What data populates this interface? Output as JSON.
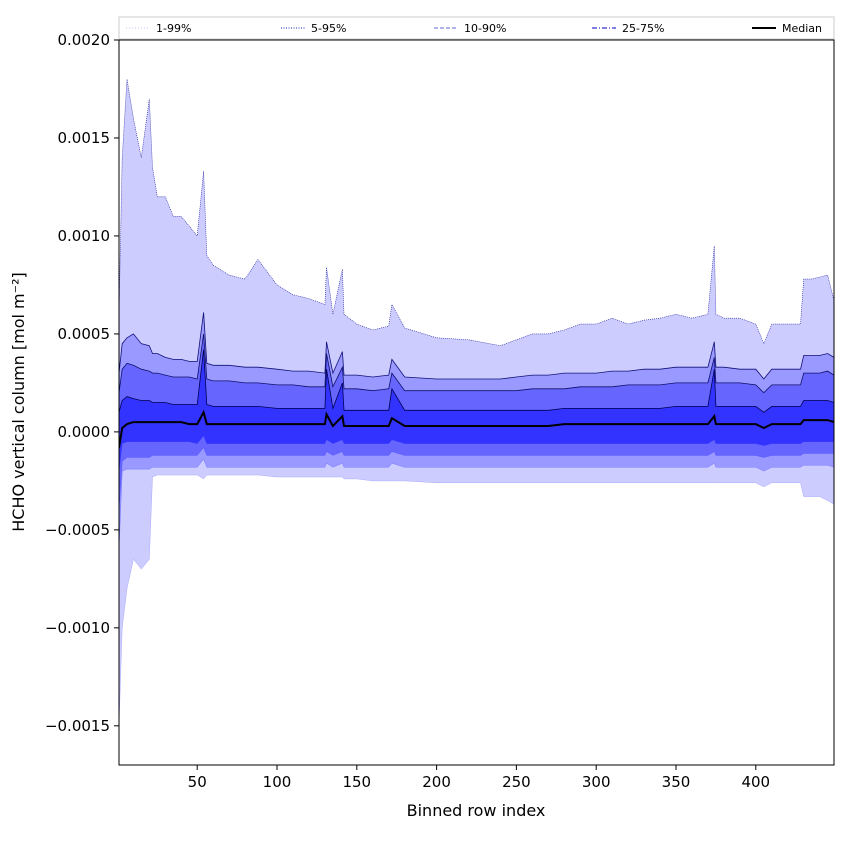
{
  "chart_data": {
    "type": "area",
    "xlabel": "Binned row index",
    "ylabel": "HCHO vertical column [mol m⁻²]",
    "xlim": [
      1,
      449
    ],
    "ylim": [
      -0.0017,
      0.002
    ],
    "xticks": [
      50,
      100,
      150,
      200,
      250,
      300,
      350,
      400
    ],
    "yticks": [
      -0.0015,
      -0.001,
      -0.0005,
      0.0,
      0.0005,
      0.001,
      0.0015,
      0.002
    ],
    "ytick_labels": [
      "−0.0015",
      "−0.0010",
      "−0.0005",
      "0.0000",
      "0.0005",
      "0.0010",
      "0.0015",
      "0.0020"
    ],
    "xtick_labels": [
      "50",
      "100",
      "150",
      "200",
      "250",
      "300",
      "350",
      "400"
    ],
    "legend_position": "top, above plot, spanning full width",
    "legend": [
      {
        "label": "1-99%",
        "color": "#b3b3e6",
        "style": "dotted-thin"
      },
      {
        "label": "5-95%",
        "color": "#2222aa",
        "style": "dotted"
      },
      {
        "label": "10-90%",
        "color": "#6a6adb",
        "style": "dashed"
      },
      {
        "label": "25-75%",
        "color": "#3333cc",
        "style": "dashdot"
      },
      {
        "label": "Median",
        "color": "#000000",
        "style": "solid"
      }
    ],
    "band_colors": {
      "p1_p99": "#ccccff",
      "p5_p95": "#9999ff",
      "p10_p90": "#6666ff",
      "p25_p75": "#3333ff",
      "median": "#000000"
    },
    "x": [
      1,
      3,
      6,
      10,
      15,
      20,
      22,
      25,
      30,
      35,
      40,
      45,
      50,
      54,
      56,
      60,
      70,
      80,
      88,
      100,
      110,
      120,
      130,
      131,
      135,
      141,
      142,
      150,
      160,
      170,
      172,
      180,
      200,
      220,
      240,
      250,
      260,
      270,
      280,
      290,
      300,
      310,
      320,
      330,
      340,
      350,
      360,
      370,
      374,
      375,
      380,
      390,
      400,
      405,
      410,
      420,
      428,
      430,
      435,
      440,
      445,
      449
    ],
    "series": [
      {
        "name": "p99",
        "values": [
          0.0006,
          0.0014,
          0.0018,
          0.0016,
          0.0014,
          0.0017,
          0.00135,
          0.0012,
          0.0012,
          0.0011,
          0.0011,
          0.00105,
          0.001,
          0.00133,
          0.0009,
          0.00085,
          0.0008,
          0.00078,
          0.00088,
          0.00075,
          0.0007,
          0.00068,
          0.00065,
          0.00084,
          0.0006,
          0.00083,
          0.0006,
          0.00055,
          0.00052,
          0.00054,
          0.00065,
          0.00053,
          0.00048,
          0.00047,
          0.00044,
          0.00047,
          0.0005,
          0.0005,
          0.00052,
          0.00055,
          0.00055,
          0.00058,
          0.00055,
          0.00057,
          0.00058,
          0.0006,
          0.00058,
          0.0006,
          0.00095,
          0.0006,
          0.00058,
          0.00058,
          0.00055,
          0.00045,
          0.00055,
          0.00055,
          0.00055,
          0.00078,
          0.00078,
          0.00079,
          0.0008,
          0.00067
        ]
      },
      {
        "name": "p95",
        "values": [
          0.0003,
          0.00045,
          0.00048,
          0.0005,
          0.00045,
          0.00044,
          0.0004,
          0.0004,
          0.00038,
          0.00037,
          0.00037,
          0.00036,
          0.00036,
          0.00061,
          0.00035,
          0.00034,
          0.00034,
          0.00033,
          0.00033,
          0.00032,
          0.00031,
          0.00031,
          0.0003,
          0.00046,
          0.0003,
          0.00041,
          0.00029,
          0.00029,
          0.00028,
          0.00029,
          0.00037,
          0.00028,
          0.00027,
          0.00027,
          0.00027,
          0.00028,
          0.00029,
          0.00029,
          0.0003,
          0.0003,
          0.0003,
          0.00031,
          0.00031,
          0.00032,
          0.00032,
          0.00033,
          0.00033,
          0.00033,
          0.00046,
          0.00033,
          0.00033,
          0.00032,
          0.00032,
          0.00027,
          0.00032,
          0.00032,
          0.00032,
          0.00039,
          0.00039,
          0.00039,
          0.0004,
          0.00038
        ]
      },
      {
        "name": "p90",
        "values": [
          0.0002,
          0.00032,
          0.00035,
          0.00034,
          0.00032,
          0.00031,
          0.0003,
          0.0003,
          0.00029,
          0.00028,
          0.00028,
          0.00028,
          0.00027,
          0.0005,
          0.00027,
          0.00026,
          0.00026,
          0.00025,
          0.00025,
          0.00024,
          0.00024,
          0.00023,
          0.00023,
          0.0004,
          0.00023,
          0.00033,
          0.00022,
          0.00022,
          0.00021,
          0.00022,
          0.0003,
          0.00021,
          0.00021,
          0.00021,
          0.00021,
          0.00021,
          0.00022,
          0.00022,
          0.00022,
          0.00023,
          0.00023,
          0.00023,
          0.00024,
          0.00024,
          0.00024,
          0.00025,
          0.00025,
          0.00025,
          0.00038,
          0.00025,
          0.00025,
          0.00025,
          0.00024,
          0.0002,
          0.00024,
          0.00024,
          0.00024,
          0.0003,
          0.0003,
          0.0003,
          0.00031,
          0.00029
        ]
      },
      {
        "name": "p75",
        "values": [
          0.0001,
          0.00016,
          0.00018,
          0.00017,
          0.00016,
          0.00016,
          0.00015,
          0.00015,
          0.00015,
          0.00014,
          0.00014,
          0.00014,
          0.00014,
          0.00042,
          0.00014,
          0.00013,
          0.00013,
          0.00013,
          0.00013,
          0.00012,
          0.00012,
          0.00012,
          0.00012,
          0.00032,
          0.00012,
          0.00025,
          0.00011,
          0.00011,
          0.00011,
          0.00011,
          0.00022,
          0.00011,
          0.00011,
          0.00011,
          0.00011,
          0.00011,
          0.00011,
          0.00011,
          0.00012,
          0.00012,
          0.00012,
          0.00012,
          0.00012,
          0.00012,
          0.00012,
          0.00013,
          0.00013,
          0.00013,
          0.00032,
          0.00013,
          0.00013,
          0.00013,
          0.00013,
          0.0001,
          0.00013,
          0.00013,
          0.00013,
          0.00016,
          0.00016,
          0.00016,
          0.00016,
          0.00015
        ]
      },
      {
        "name": "Median",
        "values": [
          -8e-05,
          2e-05,
          4e-05,
          5e-05,
          5e-05,
          5e-05,
          5e-05,
          5e-05,
          5e-05,
          5e-05,
          5e-05,
          4e-05,
          4e-05,
          0.0001,
          4e-05,
          4e-05,
          4e-05,
          4e-05,
          4e-05,
          4e-05,
          4e-05,
          4e-05,
          4e-05,
          9e-05,
          3e-05,
          8e-05,
          3e-05,
          3e-05,
          3e-05,
          3e-05,
          7e-05,
          3e-05,
          3e-05,
          3e-05,
          3e-05,
          3e-05,
          3e-05,
          3e-05,
          4e-05,
          4e-05,
          4e-05,
          4e-05,
          4e-05,
          4e-05,
          4e-05,
          4e-05,
          4e-05,
          4e-05,
          8e-05,
          4e-05,
          4e-05,
          4e-05,
          4e-05,
          2e-05,
          4e-05,
          4e-05,
          4e-05,
          6e-05,
          6e-05,
          6e-05,
          6e-05,
          5e-05
        ]
      },
      {
        "name": "p25",
        "values": [
          -0.0002,
          -6e-05,
          -5e-05,
          -5e-05,
          -5e-05,
          -5e-05,
          -5e-05,
          -5e-05,
          -5e-05,
          -5e-05,
          -5e-05,
          -5e-05,
          -6e-05,
          -2e-05,
          -6e-05,
          -6e-05,
          -6e-05,
          -6e-05,
          -6e-05,
          -6e-05,
          -6e-05,
          -6e-05,
          -6e-05,
          -4e-05,
          -6e-05,
          -4e-05,
          -6e-05,
          -6e-05,
          -6e-05,
          -6e-05,
          -4e-05,
          -6e-05,
          -6e-05,
          -6e-05,
          -6e-05,
          -6e-05,
          -6e-05,
          -6e-05,
          -6e-05,
          -6e-05,
          -6e-05,
          -6e-05,
          -6e-05,
          -6e-05,
          -6e-05,
          -6e-05,
          -6e-05,
          -6e-05,
          -4e-05,
          -6e-05,
          -6e-05,
          -6e-05,
          -6e-05,
          -7e-05,
          -6e-05,
          -6e-05,
          -6e-05,
          -5e-05,
          -5e-05,
          -5e-05,
          -5e-05,
          -5e-05
        ]
      },
      {
        "name": "p10",
        "values": [
          -0.0004,
          -0.00015,
          -0.00013,
          -0.00013,
          -0.00013,
          -0.00013,
          -0.00012,
          -0.00012,
          -0.00012,
          -0.00012,
          -0.00012,
          -0.00012,
          -0.00012,
          -8e-05,
          -0.00012,
          -0.00012,
          -0.00012,
          -0.00012,
          -0.00012,
          -0.00012,
          -0.00012,
          -0.00012,
          -0.00012,
          -0.0001,
          -0.00012,
          -0.0001,
          -0.00012,
          -0.00012,
          -0.00012,
          -0.00012,
          -0.0001,
          -0.00012,
          -0.00012,
          -0.00012,
          -0.00012,
          -0.00012,
          -0.00012,
          -0.00012,
          -0.00012,
          -0.00012,
          -0.00012,
          -0.00012,
          -0.00012,
          -0.00012,
          -0.00012,
          -0.00012,
          -0.00012,
          -0.00012,
          -0.0001,
          -0.00012,
          -0.00012,
          -0.00012,
          -0.00012,
          -0.00013,
          -0.00012,
          -0.00012,
          -0.00012,
          -0.00011,
          -0.00011,
          -0.00011,
          -0.00011,
          -0.00011
        ]
      },
      {
        "name": "p5",
        "values": [
          -0.0006,
          -0.0002,
          -0.00019,
          -0.00019,
          -0.00019,
          -0.00019,
          -0.00018,
          -0.00018,
          -0.00018,
          -0.00018,
          -0.00018,
          -0.00018,
          -0.00018,
          -0.00014,
          -0.00018,
          -0.00018,
          -0.00018,
          -0.00018,
          -0.00018,
          -0.00018,
          -0.00018,
          -0.00018,
          -0.00018,
          -0.00016,
          -0.00018,
          -0.00016,
          -0.00018,
          -0.00018,
          -0.00018,
          -0.00018,
          -0.00016,
          -0.00018,
          -0.00018,
          -0.00018,
          -0.00018,
          -0.00018,
          -0.00018,
          -0.00018,
          -0.00018,
          -0.00018,
          -0.00018,
          -0.00018,
          -0.00018,
          -0.00018,
          -0.00018,
          -0.00018,
          -0.00018,
          -0.00018,
          -0.00016,
          -0.00018,
          -0.00018,
          -0.00018,
          -0.00018,
          -0.0002,
          -0.00018,
          -0.00018,
          -0.00018,
          -0.00017,
          -0.00017,
          -0.00017,
          -0.00017,
          -0.00018
        ]
      },
      {
        "name": "p1",
        "values": [
          -0.0015,
          -0.001,
          -0.0008,
          -0.00065,
          -0.0007,
          -0.00065,
          -0.00023,
          -0.00022,
          -0.00022,
          -0.00022,
          -0.00022,
          -0.00022,
          -0.00022,
          -0.00024,
          -0.00022,
          -0.00022,
          -0.00022,
          -0.00022,
          -0.00022,
          -0.00023,
          -0.00023,
          -0.00023,
          -0.00023,
          -0.00023,
          -0.00023,
          -0.00023,
          -0.00024,
          -0.00024,
          -0.00025,
          -0.00025,
          -0.00025,
          -0.00025,
          -0.00026,
          -0.00026,
          -0.00026,
          -0.00026,
          -0.00026,
          -0.00026,
          -0.00026,
          -0.00026,
          -0.00026,
          -0.00026,
          -0.00026,
          -0.00026,
          -0.00026,
          -0.00026,
          -0.00026,
          -0.00026,
          -0.00026,
          -0.00026,
          -0.00026,
          -0.00026,
          -0.00026,
          -0.00028,
          -0.00026,
          -0.00026,
          -0.00026,
          -0.00033,
          -0.00033,
          -0.00033,
          -0.00035,
          -0.00037
        ]
      }
    ]
  }
}
